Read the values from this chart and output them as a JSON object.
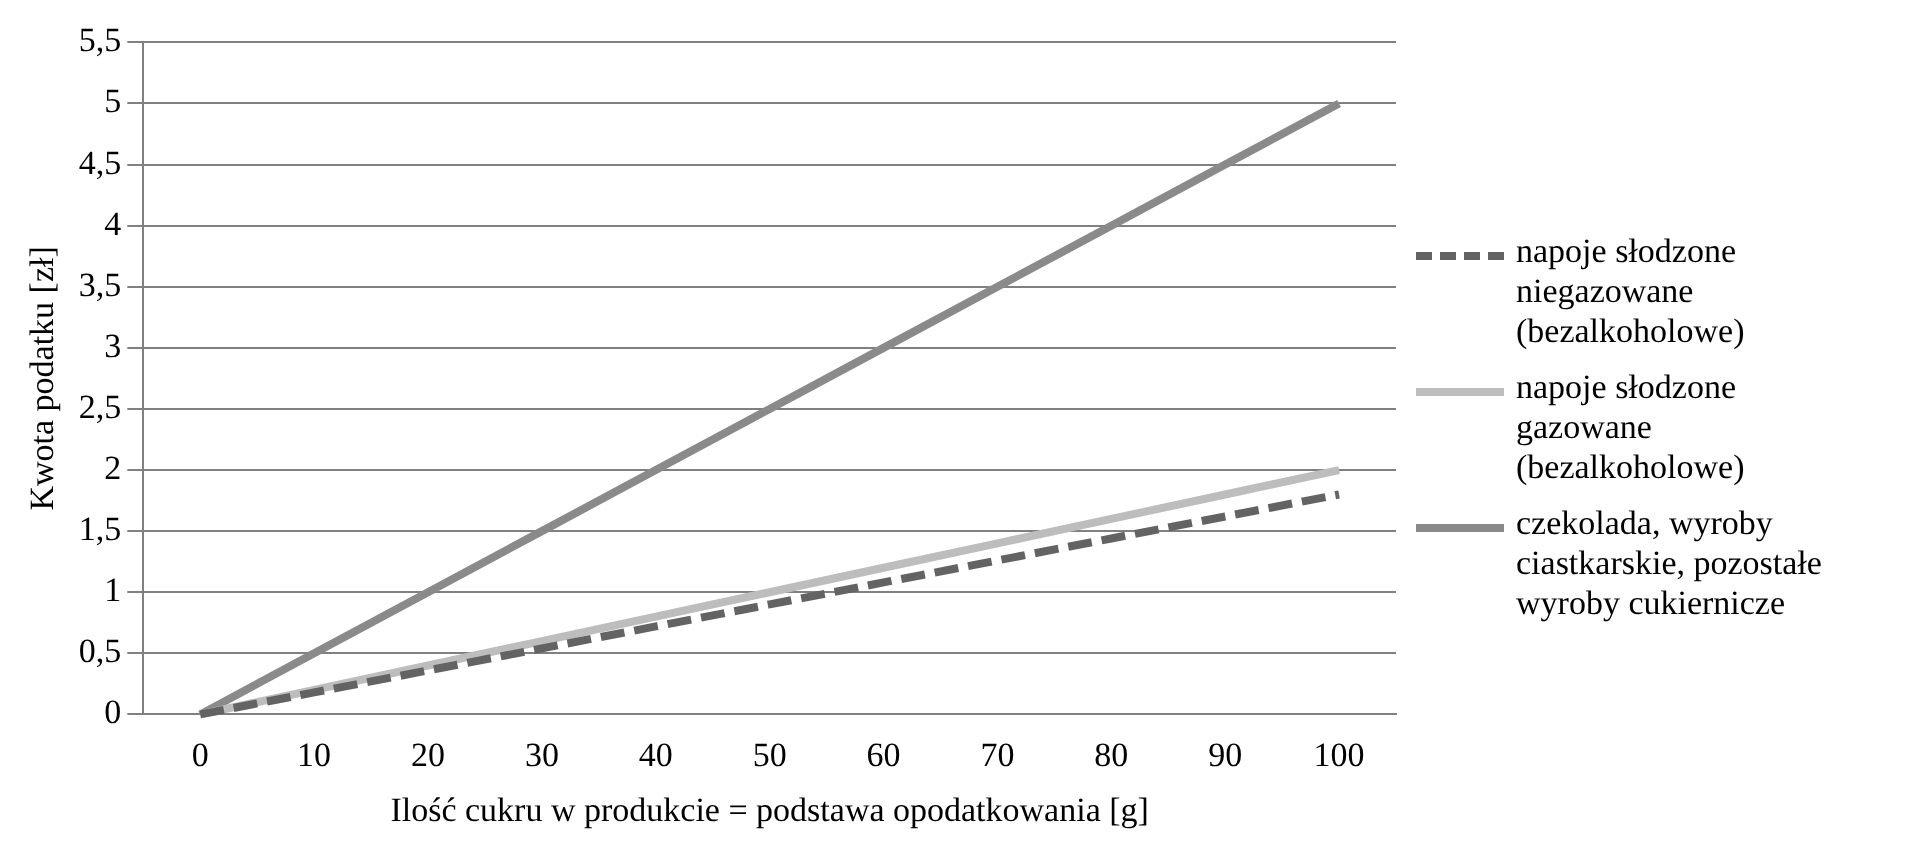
{
  "chart_data": {
    "type": "line",
    "xlabel": "Ilość cukru w produkcie = podstawa opodatkowania [g]",
    "ylabel": "Kwota podatku [zł]",
    "categories": [
      "0",
      "10",
      "20",
      "30",
      "40",
      "50",
      "60",
      "70",
      "80",
      "90",
      "100"
    ],
    "ylim": [
      0,
      5.5
    ],
    "yticks": [
      0,
      {
        "value": 0.5,
        "label": "0,5"
      },
      1,
      {
        "value": 1.5,
        "label": "1,5"
      },
      2,
      {
        "value": 2.5,
        "label": "2,5"
      },
      3,
      {
        "value": 3.5,
        "label": "3,5"
      },
      4,
      {
        "value": 4.5,
        "label": "4,5"
      },
      5,
      {
        "value": 5.5,
        "label": "5,5"
      }
    ],
    "grid": "y",
    "legend": "right",
    "marker": "none",
    "series": [
      {
        "name": "napoje słodzone niegazowane (bezalkoholowe)",
        "color": "#636363",
        "values": [
          0,
          0.18,
          0.36,
          0.54,
          0.72,
          0.9,
          1.08,
          1.26,
          1.44,
          1.62,
          1.8
        ],
        "line_style": "dashed"
      },
      {
        "name": "napoje słodzone gazowane (bezalkoholowe)",
        "color": "#bdbdbd",
        "values": [
          0,
          0.2,
          0.4,
          0.6,
          0.8,
          1.0,
          1.2,
          1.4,
          1.6,
          1.8,
          2.0
        ],
        "line_style": "solid"
      },
      {
        "name": "czekolada, wyroby ciastkarskie, pozostałe wyroby cukiernicze",
        "color": "#8a8a8a",
        "values": [
          0,
          0.5,
          1.0,
          1.5,
          2.0,
          2.5,
          3.0,
          3.5,
          4.0,
          4.5,
          5.0
        ],
        "line_style": "solid"
      }
    ]
  }
}
